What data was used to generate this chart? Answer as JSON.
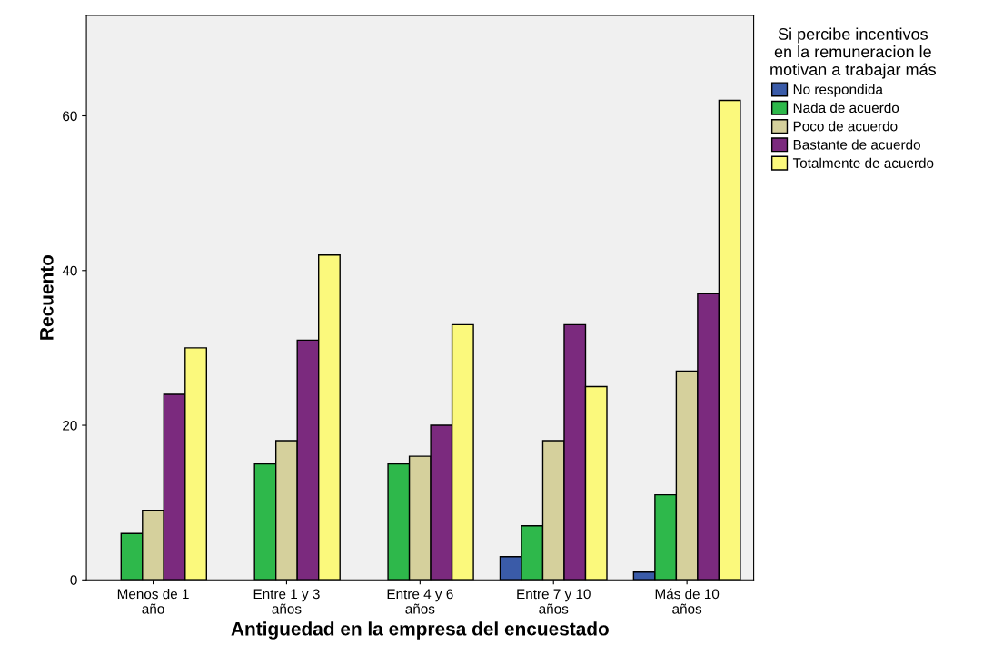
{
  "chart_data": {
    "type": "bar",
    "xlabel": "Antiguedad en la empresa del encuestado",
    "ylabel": "Recuento",
    "legend_title": "Si percibe incentivos\nen la remuneracion le\nmotivan a trabajar más",
    "categories": [
      "Menos de 1\naño",
      "Entre 1 y 3\naños",
      "Entre 4 y 6\naños",
      "Entre 7 y 10\naños",
      "Más de 10\naños"
    ],
    "series": [
      {
        "name": "No respondida",
        "color": "#3a5ba8",
        "values": [
          null,
          null,
          null,
          3,
          1
        ]
      },
      {
        "name": "Nada de acuerdo",
        "color": "#2eb84b",
        "values": [
          6,
          15,
          15,
          7,
          11
        ]
      },
      {
        "name": "Poco de acuerdo",
        "color": "#d5d09c",
        "values": [
          9,
          18,
          16,
          18,
          27
        ]
      },
      {
        "name": "Bastante de acuerdo",
        "color": "#7b2a7e",
        "values": [
          24,
          31,
          20,
          33,
          37
        ]
      },
      {
        "name": "Totalmente de acuerdo",
        "color": "#fbf97c",
        "values": [
          30,
          42,
          33,
          25,
          62
        ]
      }
    ],
    "ylim": [
      0,
      73
    ],
    "yticks": [
      0,
      20,
      40,
      60
    ],
    "grid": false,
    "legend": "right"
  }
}
